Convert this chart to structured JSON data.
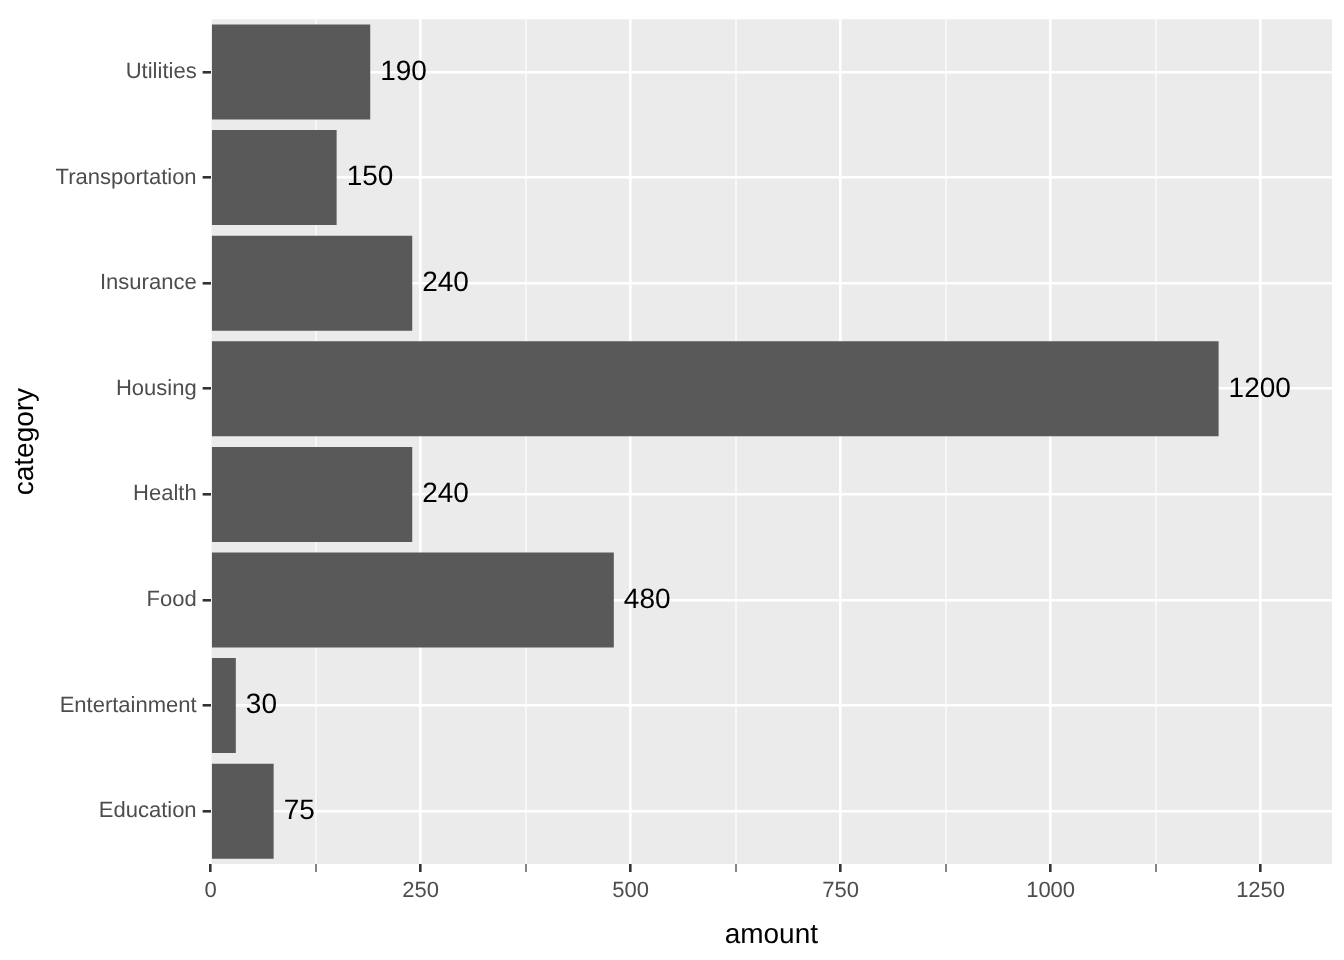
{
  "chart_data": {
    "type": "bar",
    "orientation": "horizontal",
    "xlabel": "amount",
    "ylabel": "category",
    "categories": [
      "Utilities",
      "Transportation",
      "Insurance",
      "Housing",
      "Health",
      "Food",
      "Entertainment",
      "Education"
    ],
    "values": [
      190,
      150,
      240,
      1200,
      240,
      480,
      30,
      75
    ],
    "color": "#595959",
    "xlim": [
      0,
      1335
    ],
    "xticks": [
      0,
      {
        "value": 125,
        "label": null
      },
      250,
      {
        "value": 375,
        "label": null
      },
      500,
      {
        "value": 625,
        "label": null
      },
      750,
      {
        "value": 875,
        "label": null
      },
      1000,
      {
        "value": 1125,
        "label": null
      },
      1250
    ],
    "grid": true,
    "data_labels": true,
    "legend": false
  }
}
